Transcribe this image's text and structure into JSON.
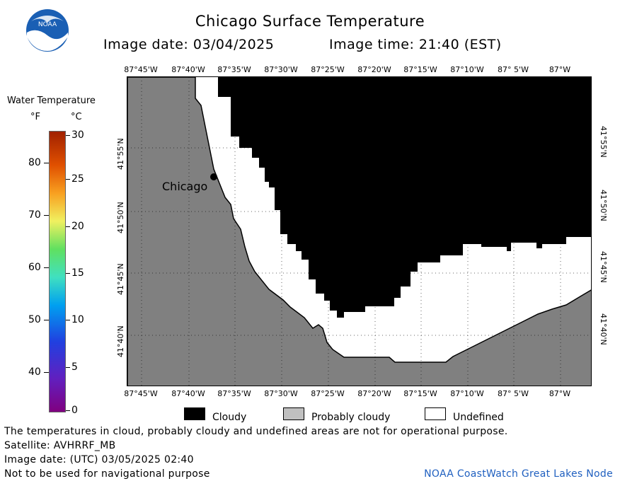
{
  "header": {
    "logo_text": "NOAA",
    "title": "Chicago Surface Temperature",
    "image_date_label": "Image date: 03/04/2025",
    "image_time_label": "Image time: 21:40 (EST)"
  },
  "map": {
    "lon_ticks": [
      "87°45'W",
      "87°40'W",
      "87°35'W",
      "87°30'W",
      "87°25'W",
      "87°20'W",
      "87°15'W",
      "87°10'W",
      "87° 5'W",
      "87°W"
    ],
    "lat_ticks": [
      "41°55'N",
      "41°50'N",
      "41°45'N",
      "41°40'N"
    ],
    "city_label": "Chicago",
    "colors": {
      "land": "#808080",
      "cloudy": "#000000",
      "undefined": "#ffffff",
      "probably_cloudy": "#c0c0c0"
    }
  },
  "colorbar": {
    "title": "Water Temperature",
    "f_unit": "°F",
    "c_unit": "°C",
    "f_ticks": [
      "80",
      "70",
      "60",
      "50",
      "40"
    ],
    "c_ticks": [
      "30",
      "25",
      "20",
      "15",
      "10",
      "5",
      "0"
    ]
  },
  "legend": {
    "items": [
      {
        "label": "Cloudy",
        "color": "#000000"
      },
      {
        "label": "Probably cloudy",
        "color": "#c0c0c0"
      },
      {
        "label": "Undefined",
        "color": "#ffffff"
      }
    ]
  },
  "footer": {
    "disclaimer": "The temperatures in cloud, probably cloudy and undefined areas are not for operational purpose.",
    "satellite": "Satellite: AVHRRF_MB",
    "utc_date": "Image date: (UTC) 03/05/2025  02:40",
    "navigation_note": "Not to be used for navigational purpose",
    "credit": "NOAA CoastWatch Great Lakes Node"
  }
}
